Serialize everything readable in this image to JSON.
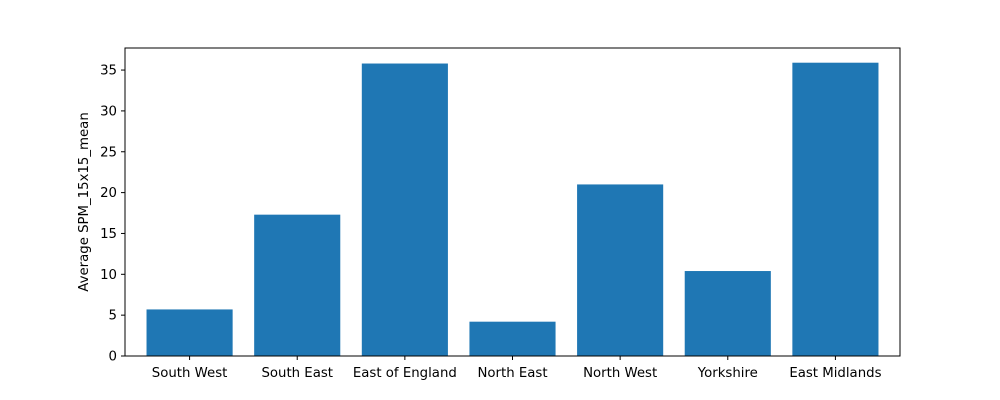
{
  "chart_data": {
    "type": "bar",
    "title": "",
    "xlabel": "",
    "ylabel": "Average SPM_15x15_mean",
    "categories": [
      "South West",
      "South East",
      "East of England",
      "North East",
      "North West",
      "Yorkshire",
      "East Midlands"
    ],
    "values": [
      5.7,
      17.3,
      35.8,
      4.2,
      21.0,
      10.4,
      35.9
    ],
    "ylim": [
      0,
      37.7
    ],
    "yticks": [
      0,
      5,
      10,
      15,
      20,
      25,
      30,
      35
    ],
    "grid": false,
    "legend": "none",
    "bar_color": "#1f77b4"
  }
}
